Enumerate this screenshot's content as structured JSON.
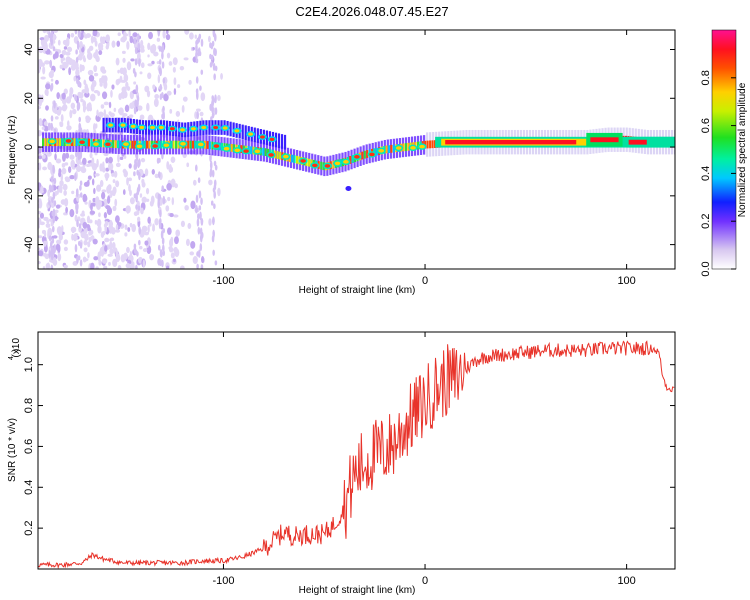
{
  "title": "C2E4.2026.048.07.45.E27",
  "colors": {
    "snr_line": "#e8332a",
    "axes": "#000000"
  },
  "chart_data": [
    {
      "type": "heatmap",
      "title": "C2E4.2026.048.07.45.E27",
      "xlabel": "Height of straight line (km)",
      "ylabel": "Frequency (Hz)",
      "xlim": [
        -192,
        124
      ],
      "ylim": [
        -50,
        48
      ],
      "xticks": [
        -100,
        0,
        100
      ],
      "xtick_labels": [
        "-100",
        "0",
        "100"
      ],
      "yticks": [
        -40,
        -20,
        0,
        20,
        40
      ],
      "ytick_labels": [
        "-40",
        "-20",
        "0",
        "20",
        "40"
      ],
      "colorbar": {
        "label": "Normalized spectral amplitude",
        "range": [
          0,
          1
        ],
        "ticks": [
          0.0,
          0.2,
          0.4,
          0.6,
          0.8
        ],
        "tick_labels": [
          "0.0",
          "0.2",
          "0.4",
          "0.6",
          "0.8"
        ]
      },
      "ridge": {
        "x": [
          -190,
          -170,
          -150,
          -130,
          -110,
          -100,
          -90,
          -80,
          -70,
          -60,
          -50,
          -40,
          -30,
          -20,
          -10,
          0,
          20,
          40,
          60,
          80,
          90,
          100,
          110,
          124
        ],
        "freq": [
          2,
          2,
          1,
          1,
          1,
          0,
          -1,
          -2,
          -4,
          -6,
          -8,
          -6,
          -3,
          -1,
          0,
          1,
          2,
          2,
          2,
          2,
          3,
          3,
          2,
          2
        ]
      },
      "upper_branch": {
        "x": [
          -160,
          -150,
          -140,
          -130,
          -120,
          -110,
          -100,
          -90,
          -80,
          -70
        ],
        "freq": [
          9,
          9,
          8,
          8,
          7,
          8,
          8,
          6,
          4,
          2
        ]
      }
    },
    {
      "type": "line",
      "title": "",
      "xlabel": "Height of straight line (km)",
      "ylabel": "SNR (10 * v/v)",
      "scale_note": "(x10",
      "scale_exp": "4",
      "xlim": [
        -192,
        124
      ],
      "ylim": [
        0.0,
        1.16
      ],
      "xticks": [
        -100,
        0,
        100
      ],
      "xtick_labels": [
        "-100",
        "0",
        "100"
      ],
      "yticks": [
        0.2,
        0.4,
        0.6,
        0.8,
        1.0
      ],
      "ytick_labels": [
        "0.2",
        "0.4",
        "0.6",
        "0.8",
        "1.0"
      ],
      "series": [
        {
          "name": "SNR",
          "x": [
            -192,
            -180,
            -170,
            -165,
            -160,
            -150,
            -140,
            -130,
            -120,
            -110,
            -100,
            -90,
            -80,
            -75,
            -70,
            -65,
            -60,
            -55,
            -50,
            -45,
            -40,
            -35,
            -30,
            -25,
            -20,
            -15,
            -10,
            -5,
            0,
            5,
            10,
            15,
            20,
            25,
            30,
            40,
            50,
            60,
            70,
            80,
            90,
            100,
            110,
            113,
            116,
            118,
            120,
            124
          ],
          "values": [
            0.02,
            0.02,
            0.03,
            0.07,
            0.05,
            0.03,
            0.03,
            0.03,
            0.03,
            0.04,
            0.04,
            0.06,
            0.1,
            0.14,
            0.18,
            0.16,
            0.17,
            0.17,
            0.17,
            0.22,
            0.3,
            0.46,
            0.52,
            0.56,
            0.58,
            0.62,
            0.7,
            0.76,
            0.82,
            0.88,
            0.92,
            0.93,
            0.98,
            1.02,
            1.04,
            1.05,
            1.06,
            1.07,
            1.07,
            1.07,
            1.08,
            1.08,
            1.08,
            1.08,
            1.06,
            0.94,
            0.89,
            0.88
          ]
        }
      ]
    }
  ]
}
